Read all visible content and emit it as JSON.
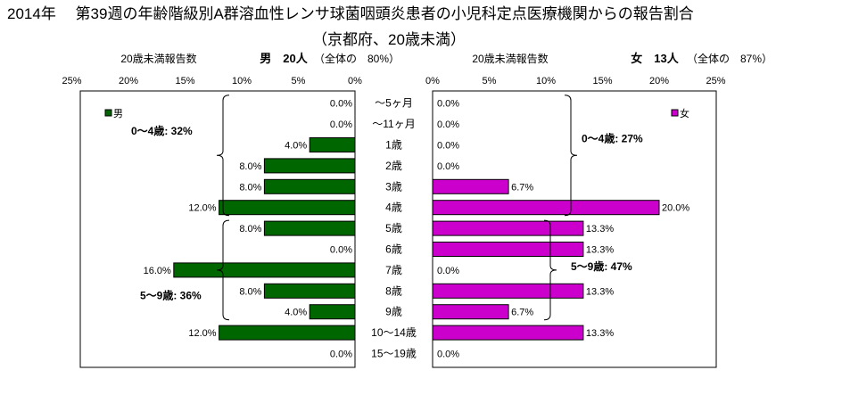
{
  "title": "2014年　 第39週の年齢階級別A群溶血性レンサ球菌咽頭炎患者の小児科定点医療機関からの報告割合",
  "subtitle": "（京都府、20歳未満）",
  "colors": {
    "male": "#006600",
    "female": "#cc00cc",
    "border": "#000000"
  },
  "chart_data": {
    "type": "bar",
    "orientation": "horizontal-butterfly",
    "categories": [
      "～5ヶ月",
      "～11ヶ月",
      "1歳",
      "2歳",
      "3歳",
      "4歳",
      "5歳",
      "6歳",
      "7歳",
      "8歳",
      "9歳",
      "10～14歳",
      "15～19歳"
    ],
    "xlim": [
      0,
      25
    ],
    "ticks": [
      "25%",
      "20%",
      "15%",
      "10%",
      "5%",
      "0%"
    ],
    "ticks_right": [
      "0%",
      "5%",
      "10%",
      "15%",
      "20%",
      "25%"
    ],
    "grid": false,
    "male": {
      "header_left": "20歳未満報告数",
      "header_main": "男　20人",
      "header_share": "（全体の　80%）",
      "legend": "男",
      "values": [
        0.0,
        0.0,
        4.0,
        8.0,
        8.0,
        12.0,
        8.0,
        0.0,
        16.0,
        8.0,
        4.0,
        12.0,
        0.0
      ],
      "labels": [
        "0.0%",
        "0.0%",
        "4.0%",
        "8.0%",
        "8.0%",
        "12.0%",
        "8.0%",
        "0.0%",
        "16.0%",
        "8.0%",
        "4.0%",
        "12.0%",
        "0.0%"
      ],
      "groups": [
        {
          "label": "0～4歳: 32%",
          "from": 0,
          "to": 5
        },
        {
          "label": "5～9歳: 36%",
          "from": 6,
          "to": 10
        }
      ]
    },
    "female": {
      "header_left": "20歳未満報告数",
      "header_main": "女　13人",
      "header_share": "（全体の　87%）",
      "legend": "女",
      "values": [
        0.0,
        0.0,
        0.0,
        0.0,
        6.7,
        20.0,
        13.3,
        13.3,
        0.0,
        13.3,
        6.7,
        13.3,
        0.0
      ],
      "labels": [
        "0.0%",
        "0.0%",
        "0.0%",
        "0.0%",
        "6.7%",
        "20.0%",
        "13.3%",
        "13.3%",
        "0.0%",
        "13.3%",
        "6.7%",
        "13.3%",
        "0.0%"
      ],
      "groups": [
        {
          "label": "0～4歳: 27%",
          "from": 0,
          "to": 5
        },
        {
          "label": "5～9歳: 47%",
          "from": 6,
          "to": 10
        }
      ]
    }
  }
}
